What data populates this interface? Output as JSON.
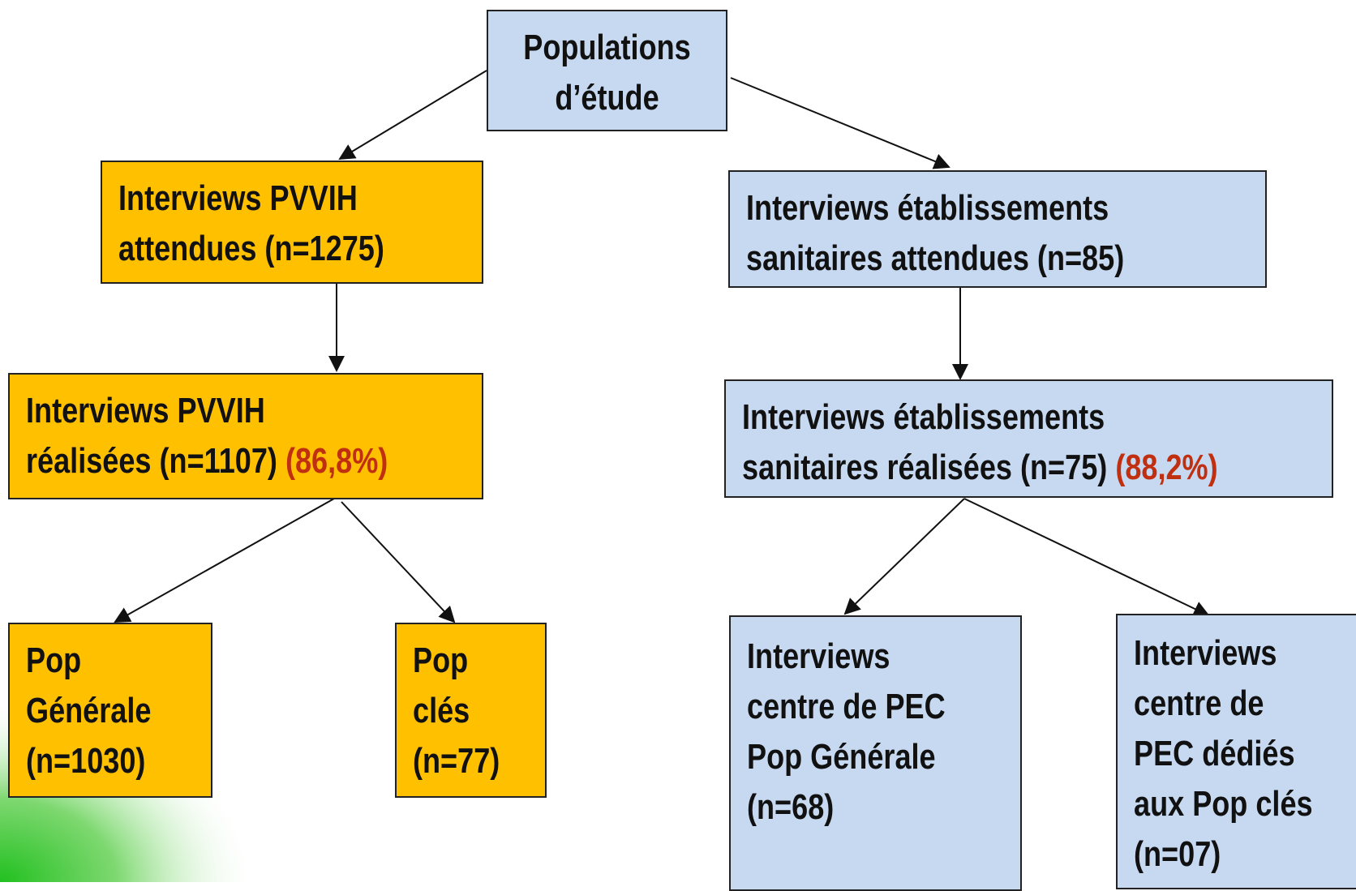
{
  "nodes": [
    {
      "lines": [
        "Populations",
        "d’étude"
      ]
    },
    {
      "lines": [
        "Interviews PVVIH",
        "attendues (n=1275)"
      ]
    },
    {
      "lines": [
        "Interviews établissements",
        "sanitaires attendues (n=85)"
      ]
    },
    {
      "lines": [
        "Interviews PVVIH",
        "réalisées (n=1107)"
      ],
      "highlight": "(86,8%)"
    },
    {
      "lines": [
        "Interviews établissements",
        "sanitaires réalisées (n=75)"
      ],
      "highlight": "(88,2%)"
    },
    {
      "lines": [
        "Pop",
        "Générale",
        "(n=1030)"
      ]
    },
    {
      "lines": [
        "Pop",
        "clés",
        "(n=77)"
      ]
    },
    {
      "lines": [
        "Interviews",
        "centre de PEC",
        "Pop Générale",
        "(n=68)"
      ]
    },
    {
      "lines": [
        "Interviews",
        "centre de",
        "PEC dédiés",
        "aux Pop clés",
        "(n=07)"
      ]
    }
  ]
}
